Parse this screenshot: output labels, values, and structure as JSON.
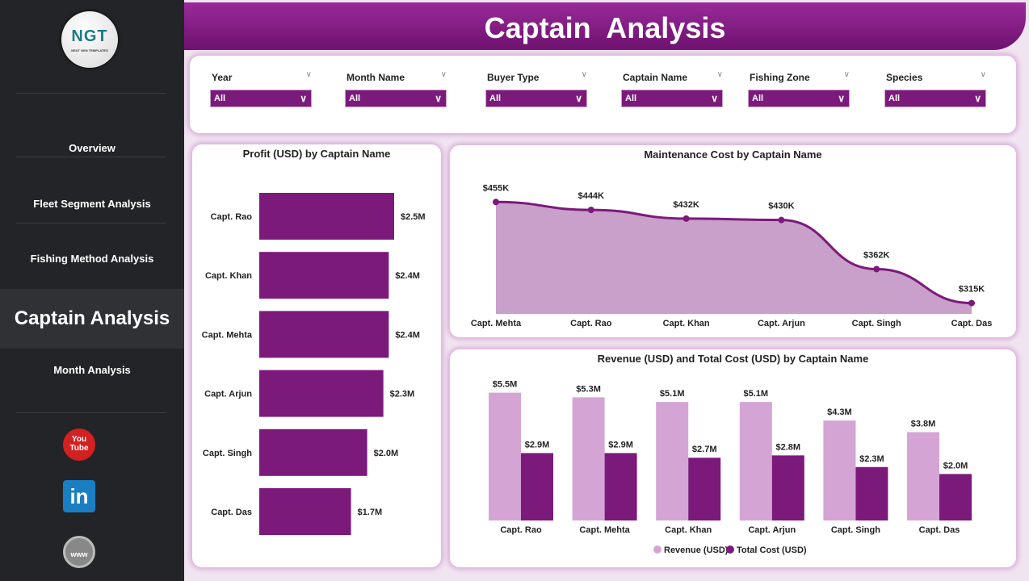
{
  "header": {
    "title": "Captain  Analysis"
  },
  "sidebar": {
    "logo_text": "NGT",
    "logo_subtitle": "NEXT GEN TEMPLATES",
    "items": [
      {
        "label": "Overview"
      },
      {
        "label": "Fleet Segment Analysis"
      },
      {
        "label": "Fishing Method Analysis"
      },
      {
        "label": "Captain Analysis",
        "active": true
      },
      {
        "label": "Month Analysis"
      }
    ],
    "social": [
      {
        "icon": "youtube-icon",
        "label": "You Tube"
      },
      {
        "icon": "linkedin-icon",
        "label": "in"
      },
      {
        "icon": "globe-icon",
        "label": "www"
      }
    ]
  },
  "filters": [
    {
      "label": "Year",
      "value": "All"
    },
    {
      "label": "Month Name",
      "value": "All"
    },
    {
      "label": "Buyer Type",
      "value": "All"
    },
    {
      "label": "Captain Name",
      "value": "All"
    },
    {
      "label": "Fishing Zone",
      "value": "All"
    },
    {
      "label": "Species",
      "value": "All"
    }
  ],
  "colors": {
    "primary": "#7b1a7b",
    "light": "#d4a5d4",
    "area": "#c9a0c9"
  },
  "chart_data": [
    {
      "type": "bar",
      "orientation": "horizontal",
      "title": "Profit (USD) by Captain Name",
      "categories": [
        "Capt. Rao",
        "Capt. Khan",
        "Capt. Mehta",
        "Capt. Arjun",
        "Capt. Singh",
        "Capt. Das"
      ],
      "values": [
        2.5,
        2.4,
        2.4,
        2.3,
        2.0,
        1.7
      ],
      "labels": [
        "$2.5M",
        "$2.4M",
        "$2.4M",
        "$2.3M",
        "$2.0M",
        "$1.7M"
      ],
      "unit": "M USD"
    },
    {
      "type": "area",
      "title": "Maintenance Cost by Captain Name",
      "categories": [
        "Capt. Mehta",
        "Capt. Rao",
        "Capt. Khan",
        "Capt. Arjun",
        "Capt. Singh",
        "Capt. Das"
      ],
      "values": [
        455,
        444,
        432,
        430,
        362,
        315
      ],
      "labels": [
        "$455K",
        "$444K",
        "$432K",
        "$430K",
        "$362K",
        "$315K"
      ],
      "unit": "K USD",
      "ylim": [
        300,
        500
      ]
    },
    {
      "type": "bar",
      "title": "Revenue (USD) and Total Cost (USD) by Captain Name",
      "categories": [
        "Capt. Rao",
        "Capt. Mehta",
        "Capt. Khan",
        "Capt. Arjun",
        "Capt. Singh",
        "Capt. Das"
      ],
      "series": [
        {
          "name": "Revenue (USD)",
          "values": [
            5.5,
            5.3,
            5.1,
            5.1,
            4.3,
            3.8
          ],
          "labels": [
            "$5.5M",
            "$5.3M",
            "$5.1M",
            "$5.1M",
            "$4.3M",
            "$3.8M"
          ]
        },
        {
          "name": "Total Cost (USD)",
          "values": [
            2.9,
            2.9,
            2.7,
            2.8,
            2.3,
            2.0
          ],
          "labels": [
            "$2.9M",
            "$2.9M",
            "$2.7M",
            "$2.8M",
            "$2.3M",
            "$2.0M"
          ]
        }
      ],
      "legend": "bottom",
      "unit": "M USD"
    }
  ]
}
